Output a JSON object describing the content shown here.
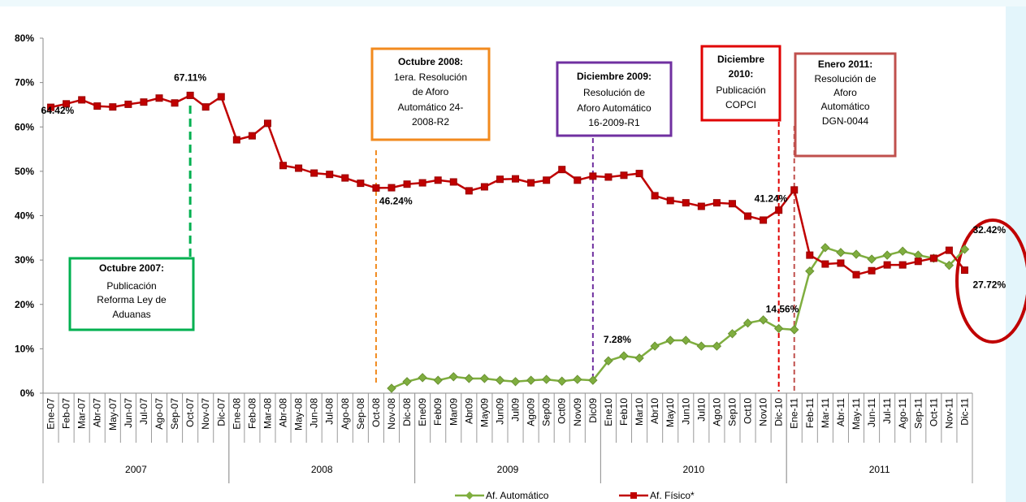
{
  "chart_data": {
    "type": "line",
    "categories": [
      "Ene-07",
      "Feb-07",
      "Mar-07",
      "Abr-07",
      "May-07",
      "Jun-07",
      "Jul-07",
      "Ago-07",
      "Sep-07",
      "Oct-07",
      "Nov-07",
      "Dic-07",
      "Ene-08",
      "Feb-08",
      "Mar-08",
      "Abr-08",
      "May-08",
      "Jun-08",
      "Jul-08",
      "Ago-08",
      "Sep-08",
      "Oct-08",
      "Nov-08",
      "Dic-08",
      "Ene09",
      "Feb09",
      "Mar09",
      "Abr09",
      "May09",
      "Jun09",
      "Jul09",
      "Ago09",
      "Sep09",
      "Oct09",
      "Nov09",
      "Dic09",
      "Ene10",
      "Feb10",
      "Mar10",
      "Abr10",
      "May10",
      "Jun10",
      "Jul10",
      "Ago10",
      "Sep10",
      "Oct10",
      "Nov10",
      "Dic-10",
      "Ene-11",
      "Feb-11",
      "Mar-11",
      "Abr-11",
      "May-11",
      "Jun-11",
      "Jul-11",
      "Ago-11",
      "Sep-11",
      "Oct-11",
      "Nov-11",
      "Dic-11"
    ],
    "years": [
      "2007",
      "2008",
      "2009",
      "2010",
      "2011"
    ],
    "series": [
      {
        "name": "Af. Automático",
        "color": "#7fae3f",
        "marker": "diamond",
        "values": [
          null,
          null,
          null,
          null,
          null,
          null,
          null,
          null,
          null,
          null,
          null,
          null,
          null,
          null,
          null,
          null,
          null,
          null,
          null,
          null,
          null,
          null,
          1.1,
          2.6,
          3.5,
          2.9,
          3.7,
          3.3,
          3.3,
          2.9,
          2.6,
          2.9,
          3.1,
          2.7,
          3.1,
          2.9,
          7.28,
          8.4,
          7.9,
          10.6,
          11.9,
          11.9,
          10.6,
          10.6,
          13.4,
          15.8,
          16.5,
          14.56,
          14.3,
          27.5,
          32.8,
          31.7,
          31.3,
          30.2,
          31.1,
          32.0,
          31.1,
          30.4,
          28.8,
          32.42
        ],
        "value_labels": [
          null,
          null,
          null,
          null,
          null,
          null,
          null,
          null,
          null,
          null,
          null,
          null,
          null,
          null,
          null,
          null,
          null,
          null,
          null,
          null,
          null,
          null,
          null,
          null,
          null,
          null,
          null,
          null,
          null,
          null,
          null,
          null,
          null,
          null,
          null,
          null,
          "7.28%",
          null,
          null,
          null,
          null,
          null,
          null,
          null,
          null,
          null,
          null,
          "14.56%",
          null,
          null,
          null,
          null,
          null,
          null,
          null,
          null,
          null,
          null,
          null,
          "32.42%"
        ]
      },
      {
        "name": "Af. Físico*",
        "color": "#c00000",
        "marker": "square",
        "values": [
          64.42,
          65.2,
          66.1,
          64.7,
          64.5,
          65.1,
          65.6,
          66.5,
          65.4,
          67.11,
          64.5,
          66.8,
          57.1,
          58.0,
          60.8,
          51.3,
          50.7,
          49.6,
          49.3,
          48.5,
          47.3,
          46.24,
          46.3,
          47.1,
          47.4,
          48.0,
          47.6,
          45.6,
          46.5,
          48.2,
          48.3,
          47.4,
          48.0,
          50.4,
          48.0,
          48.9,
          48.7,
          49.1,
          49.5,
          44.5,
          43.4,
          42.9,
          42.1,
          42.9,
          42.7,
          39.9,
          39.0,
          41.24,
          45.8,
          31.1,
          29.1,
          29.3,
          26.7,
          27.6,
          28.9,
          28.9,
          29.7,
          30.4,
          32.2,
          27.72
        ],
        "value_labels": [
          "64.42%",
          null,
          null,
          null,
          null,
          null,
          null,
          null,
          null,
          "67.11%",
          null,
          null,
          null,
          null,
          null,
          null,
          null,
          null,
          null,
          null,
          null,
          "46.24%",
          null,
          null,
          null,
          null,
          null,
          null,
          null,
          null,
          null,
          null,
          null,
          null,
          null,
          null,
          null,
          null,
          null,
          null,
          null,
          null,
          null,
          null,
          null,
          null,
          null,
          "41.24%",
          null,
          null,
          null,
          null,
          null,
          null,
          null,
          null,
          null,
          null,
          null,
          "27.72%"
        ]
      }
    ],
    "ylim": [
      0,
      80
    ],
    "yticks": [
      {
        "value": 0,
        "label": "0%"
      },
      {
        "value": 10,
        "label": "10%"
      },
      {
        "value": 20,
        "label": "20%"
      },
      {
        "value": 30,
        "label": "30%"
      },
      {
        "value": 40,
        "label": "40%"
      },
      {
        "value": 50,
        "label": "50%"
      },
      {
        "value": 60,
        "label": "60%"
      },
      {
        "value": 70,
        "label": "70%"
      },
      {
        "value": 80,
        "label": "80%"
      }
    ],
    "grid": false,
    "legend": "bottom",
    "annotations": [
      {
        "title": [
          "Octubre 2007:"
        ],
        "lines": [
          "Publicación",
          "Reforma Ley de",
          "Aduanas"
        ],
        "color": "#00b050"
      },
      {
        "title": [
          "Octubre 2008:"
        ],
        "lines": [
          "1era. Resolución",
          "de Aforo",
          "Automático 24-",
          "2008-R2"
        ],
        "color": "#f28a1e"
      },
      {
        "title": [
          "Diciembre 2009:"
        ],
        "lines": [
          "Resolución de",
          "Aforo Automático",
          "16-2009-R1"
        ],
        "color": "#7030a0"
      },
      {
        "title": [
          "Diciembre",
          "2010:"
        ],
        "lines": [
          "Publicación",
          "COPCI"
        ],
        "color": "#e00000"
      },
      {
        "title": [
          "Enero 2011:"
        ],
        "lines": [
          "Resolución de",
          "Aforo",
          "Automático",
          "DGN-0044"
        ],
        "color": "#c0504d"
      }
    ]
  }
}
